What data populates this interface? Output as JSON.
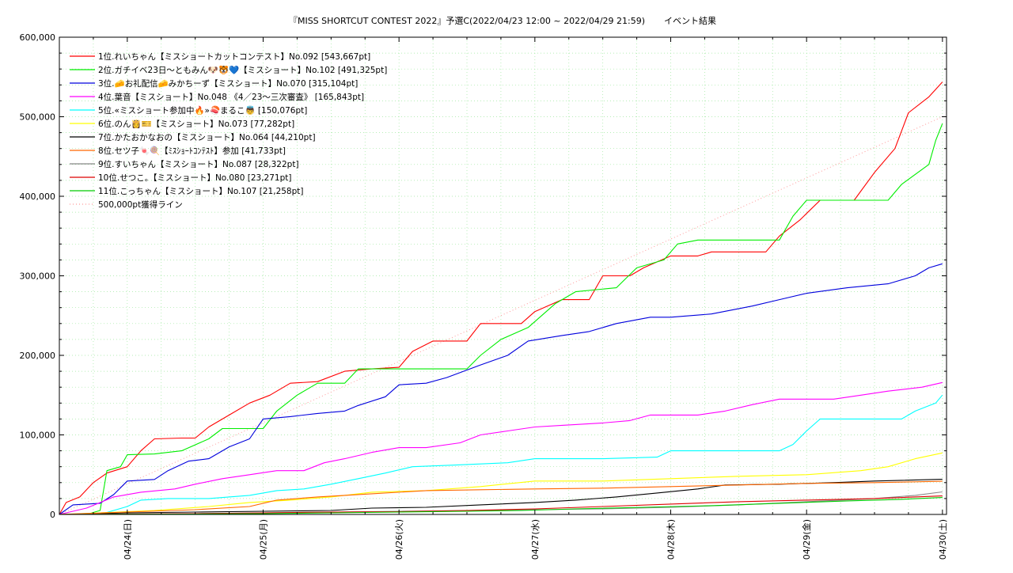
{
  "chart_data": {
    "type": "line",
    "title": "『MISS SHORTCUT CONTEST 2022』予選C(2022/04/23 12:00 ~ 2022/04/29 21:59)",
    "subtitle": "イベント結果",
    "xlabel": "",
    "ylabel": "",
    "x_ticks": [
      "04/24(日)",
      "04/25(月)",
      "04/26(火)",
      "04/27(水)",
      "04/28(木)",
      "04/29(金)",
      "04/30(土)"
    ],
    "xlim": [
      -0.5,
      6.03
    ],
    "ylim": [
      0,
      600000
    ],
    "y_ticks": [
      {
        "value": 0,
        "label": "0"
      },
      {
        "value": 100000,
        "label": "100,000"
      },
      {
        "value": 200000,
        "label": "200,000"
      },
      {
        "value": 300000,
        "label": "300,000"
      },
      {
        "value": 400000,
        "label": "400,000"
      },
      {
        "value": 500000,
        "label": "500,000"
      },
      {
        "value": 600000,
        "label": "600,000"
      }
    ],
    "grid": true,
    "legend_position": "top-left",
    "series": [
      {
        "name": "1位.れいちゃん【ミスショートカットコンテスト】No.092 [543,667pt]",
        "color": "#ff0000",
        "points": [
          [
            -0.5,
            0
          ],
          [
            -0.45,
            15000
          ],
          [
            -0.35,
            22000
          ],
          [
            -0.25,
            40000
          ],
          [
            -0.15,
            52000
          ],
          [
            0,
            60000
          ],
          [
            0.1,
            80000
          ],
          [
            0.2,
            95000
          ],
          [
            0.4,
            96000
          ],
          [
            0.5,
            96000
          ],
          [
            0.6,
            110000
          ],
          [
            0.75,
            125000
          ],
          [
            0.9,
            140000
          ],
          [
            1.05,
            150000
          ],
          [
            1.2,
            165000
          ],
          [
            1.4,
            167000
          ],
          [
            1.6,
            180000
          ],
          [
            1.8,
            183000
          ],
          [
            2.0,
            185000
          ],
          [
            2.1,
            205000
          ],
          [
            2.25,
            218000
          ],
          [
            2.5,
            218000
          ],
          [
            2.6,
            240000
          ],
          [
            2.9,
            240000
          ],
          [
            3.0,
            255000
          ],
          [
            3.2,
            270000
          ],
          [
            3.4,
            270000
          ],
          [
            3.5,
            300000
          ],
          [
            3.7,
            300000
          ],
          [
            3.8,
            310000
          ],
          [
            4.0,
            325000
          ],
          [
            4.2,
            325000
          ],
          [
            4.3,
            330000
          ],
          [
            4.7,
            330000
          ],
          [
            4.8,
            350000
          ],
          [
            4.95,
            370000
          ],
          [
            5.1,
            395000
          ],
          [
            5.35,
            395000
          ],
          [
            5.5,
            430000
          ],
          [
            5.65,
            460000
          ],
          [
            5.75,
            505000
          ],
          [
            5.9,
            525000
          ],
          [
            6.0,
            543667
          ]
        ]
      },
      {
        "name": "2位.ガチイベ23日〜ともみん🐶🐯💙【ミスショート】No.102 [491,325pt]",
        "color": "#00ee00",
        "points": [
          [
            -0.5,
            0
          ],
          [
            -0.3,
            0
          ],
          [
            -0.2,
            5000
          ],
          [
            -0.15,
            55000
          ],
          [
            -0.05,
            60000
          ],
          [
            0,
            75000
          ],
          [
            0.2,
            76000
          ],
          [
            0.4,
            80000
          ],
          [
            0.6,
            95000
          ],
          [
            0.7,
            108000
          ],
          [
            1.0,
            108000
          ],
          [
            1.1,
            130000
          ],
          [
            1.25,
            150000
          ],
          [
            1.4,
            165000
          ],
          [
            1.6,
            165000
          ],
          [
            1.7,
            183000
          ],
          [
            2.0,
            183000
          ],
          [
            2.5,
            183000
          ],
          [
            2.6,
            200000
          ],
          [
            2.75,
            220000
          ],
          [
            2.95,
            235000
          ],
          [
            3.15,
            265000
          ],
          [
            3.3,
            280000
          ],
          [
            3.6,
            285000
          ],
          [
            3.75,
            310000
          ],
          [
            3.95,
            320000
          ],
          [
            4.05,
            340000
          ],
          [
            4.2,
            345000
          ],
          [
            4.5,
            345000
          ],
          [
            4.8,
            345000
          ],
          [
            4.9,
            375000
          ],
          [
            5.0,
            395000
          ],
          [
            5.3,
            395000
          ],
          [
            5.6,
            395000
          ],
          [
            5.7,
            415000
          ],
          [
            5.9,
            440000
          ],
          [
            5.95,
            470000
          ],
          [
            6.0,
            491325
          ]
        ]
      },
      {
        "name": "3位.🧀お礼配信🧀みかちーず【ミスショート】No.070 [315,104pt]",
        "color": "#0000dd",
        "points": [
          [
            -0.5,
            0
          ],
          [
            -0.4,
            12000
          ],
          [
            -0.2,
            14000
          ],
          [
            -0.1,
            25000
          ],
          [
            0,
            42000
          ],
          [
            0.2,
            44000
          ],
          [
            0.3,
            55000
          ],
          [
            0.45,
            67000
          ],
          [
            0.6,
            70000
          ],
          [
            0.75,
            85000
          ],
          [
            0.9,
            95000
          ],
          [
            1.0,
            120000
          ],
          [
            1.2,
            123000
          ],
          [
            1.4,
            127000
          ],
          [
            1.6,
            130000
          ],
          [
            1.7,
            137000
          ],
          [
            1.9,
            148000
          ],
          [
            2.0,
            163000
          ],
          [
            2.2,
            165000
          ],
          [
            2.35,
            172000
          ],
          [
            2.6,
            188000
          ],
          [
            2.8,
            200000
          ],
          [
            2.95,
            218000
          ],
          [
            3.2,
            225000
          ],
          [
            3.4,
            230000
          ],
          [
            3.6,
            240000
          ],
          [
            3.85,
            248000
          ],
          [
            4.0,
            248000
          ],
          [
            4.3,
            252000
          ],
          [
            4.6,
            262000
          ],
          [
            4.8,
            270000
          ],
          [
            5.0,
            278000
          ],
          [
            5.3,
            285000
          ],
          [
            5.6,
            290000
          ],
          [
            5.8,
            300000
          ],
          [
            5.9,
            310000
          ],
          [
            6.0,
            315104
          ]
        ]
      },
      {
        "name": "4位.葉音【ミスショート】No.048 《4／23〜三次審査》 [165,843pt]",
        "color": "#ff00ff",
        "points": [
          [
            -0.5,
            0
          ],
          [
            -0.3,
            8000
          ],
          [
            -0.1,
            22000
          ],
          [
            0.1,
            28000
          ],
          [
            0.35,
            32000
          ],
          [
            0.5,
            38000
          ],
          [
            0.7,
            45000
          ],
          [
            0.9,
            50000
          ],
          [
            1.1,
            55000
          ],
          [
            1.3,
            55000
          ],
          [
            1.45,
            65000
          ],
          [
            1.6,
            70000
          ],
          [
            1.8,
            78000
          ],
          [
            2.0,
            84000
          ],
          [
            2.2,
            84000
          ],
          [
            2.45,
            90000
          ],
          [
            2.6,
            100000
          ],
          [
            2.8,
            105000
          ],
          [
            3.0,
            110000
          ],
          [
            3.2,
            112000
          ],
          [
            3.5,
            115000
          ],
          [
            3.7,
            118000
          ],
          [
            3.85,
            125000
          ],
          [
            4.2,
            125000
          ],
          [
            4.4,
            130000
          ],
          [
            4.6,
            138000
          ],
          [
            4.8,
            145000
          ],
          [
            5.2,
            145000
          ],
          [
            5.4,
            150000
          ],
          [
            5.6,
            155000
          ],
          [
            5.85,
            160000
          ],
          [
            6.0,
            165843
          ]
        ]
      },
      {
        "name": "5位.«ミスショート参加中🔥»🍣まるこ👼 [150,076pt]",
        "color": "#00ffff",
        "points": [
          [
            -0.5,
            0
          ],
          [
            -0.2,
            0
          ],
          [
            0,
            10000
          ],
          [
            0.1,
            18000
          ],
          [
            0.3,
            20000
          ],
          [
            0.6,
            20000
          ],
          [
            0.9,
            24000
          ],
          [
            1.1,
            30000
          ],
          [
            1.3,
            32000
          ],
          [
            1.5,
            38000
          ],
          [
            1.7,
            45000
          ],
          [
            1.9,
            52000
          ],
          [
            2.1,
            60000
          ],
          [
            2.4,
            62000
          ],
          [
            2.8,
            65000
          ],
          [
            3.0,
            70000
          ],
          [
            3.5,
            70000
          ],
          [
            3.9,
            72000
          ],
          [
            4.0,
            80000
          ],
          [
            4.4,
            80000
          ],
          [
            4.8,
            80000
          ],
          [
            4.9,
            88000
          ],
          [
            5.0,
            105000
          ],
          [
            5.1,
            120000
          ],
          [
            5.4,
            120000
          ],
          [
            5.7,
            120000
          ],
          [
            5.8,
            130000
          ],
          [
            5.95,
            140000
          ],
          [
            6.0,
            150076
          ]
        ]
      },
      {
        "name": "6位.のん👸🎫【ミスショート】No.073 [77,282pt]",
        "color": "#ffff00",
        "points": [
          [
            -0.5,
            0
          ],
          [
            -0.2,
            2000
          ],
          [
            0.2,
            5000
          ],
          [
            0.6,
            10000
          ],
          [
            0.9,
            15000
          ],
          [
            1.2,
            18000
          ],
          [
            1.5,
            22000
          ],
          [
            1.8,
            28000
          ],
          [
            2.2,
            30000
          ],
          [
            2.6,
            35000
          ],
          [
            3.0,
            42000
          ],
          [
            3.5,
            42000
          ],
          [
            4.0,
            45000
          ],
          [
            4.5,
            48000
          ],
          [
            5.0,
            50000
          ],
          [
            5.4,
            55000
          ],
          [
            5.6,
            60000
          ],
          [
            5.8,
            70000
          ],
          [
            6.0,
            77282
          ]
        ]
      },
      {
        "name": "7位.かたおかなおの【ミスショート】No.064 [44,210pt]",
        "color": "#000000",
        "points": [
          [
            -0.5,
            0
          ],
          [
            0,
            2000
          ],
          [
            0.5,
            3000
          ],
          [
            1.0,
            4000
          ],
          [
            1.5,
            5000
          ],
          [
            1.8,
            8000
          ],
          [
            2.2,
            9000
          ],
          [
            2.6,
            12000
          ],
          [
            3.0,
            15000
          ],
          [
            3.3,
            18000
          ],
          [
            3.6,
            22000
          ],
          [
            3.9,
            27000
          ],
          [
            4.2,
            32000
          ],
          [
            4.4,
            37000
          ],
          [
            4.8,
            38000
          ],
          [
            5.2,
            40000
          ],
          [
            5.5,
            42000
          ],
          [
            6.0,
            44210
          ]
        ]
      },
      {
        "name": "8位.セツ子🍬🍭【ﾐｽｼｮｰﾄｺﾝﾃｽﾄ】参加 [41,733pt]",
        "color": "#ff6600",
        "points": [
          [
            -0.5,
            0
          ],
          [
            0,
            3000
          ],
          [
            0.5,
            6000
          ],
          [
            0.9,
            10000
          ],
          [
            1.1,
            18000
          ],
          [
            1.4,
            22000
          ],
          [
            1.8,
            26000
          ],
          [
            2.2,
            30000
          ],
          [
            2.6,
            31000
          ],
          [
            3.0,
            32000
          ],
          [
            3.5,
            33000
          ],
          [
            4.0,
            35000
          ],
          [
            4.5,
            37000
          ],
          [
            5.0,
            39000
          ],
          [
            5.5,
            40000
          ],
          [
            6.0,
            41733
          ]
        ]
      },
      {
        "name": "9位.すいちゃん【ミスショート】No.087 [28,322pt]",
        "color": "#888888",
        "points": [
          [
            -0.5,
            0
          ],
          [
            0.5,
            1000
          ],
          [
            1.0,
            2000
          ],
          [
            1.5,
            3000
          ],
          [
            2.0,
            4000
          ],
          [
            2.5,
            5000
          ],
          [
            3.0,
            6000
          ],
          [
            3.5,
            7000
          ],
          [
            4.0,
            9000
          ],
          [
            4.5,
            12000
          ],
          [
            5.0,
            16000
          ],
          [
            5.5,
            20000
          ],
          [
            5.8,
            24000
          ],
          [
            6.0,
            28322
          ]
        ]
      },
      {
        "name": "10位.せつこ。【ミスショート】No.080 [23,271pt]",
        "color": "#dd0000",
        "points": [
          [
            -0.5,
            0
          ],
          [
            0.5,
            1000
          ],
          [
            1.0,
            2000
          ],
          [
            1.5,
            3000
          ],
          [
            2.0,
            3500
          ],
          [
            2.5,
            5000
          ],
          [
            3.0,
            7000
          ],
          [
            3.5,
            10000
          ],
          [
            4.0,
            13000
          ],
          [
            4.5,
            16000
          ],
          [
            5.0,
            18000
          ],
          [
            5.5,
            20000
          ],
          [
            6.0,
            23271
          ]
        ]
      },
      {
        "name": "11位.こっちゃん【ミスショート】No.107 [21,258pt]",
        "color": "#00cc00",
        "points": [
          [
            -0.5,
            0
          ],
          [
            0.5,
            500
          ],
          [
            1.0,
            1000
          ],
          [
            1.5,
            2000
          ],
          [
            2.0,
            3000
          ],
          [
            2.5,
            4000
          ],
          [
            2.9,
            5000
          ],
          [
            3.3,
            7000
          ],
          [
            3.8,
            9000
          ],
          [
            4.3,
            11000
          ],
          [
            4.8,
            14000
          ],
          [
            5.3,
            17000
          ],
          [
            5.7,
            19000
          ],
          [
            6.0,
            21258
          ]
        ]
      },
      {
        "name": "500,000pt獲得ライン",
        "color": "#ff9999",
        "dotted": true,
        "points": [
          [
            -0.5,
            0
          ],
          [
            6.0,
            500000
          ]
        ]
      }
    ]
  }
}
